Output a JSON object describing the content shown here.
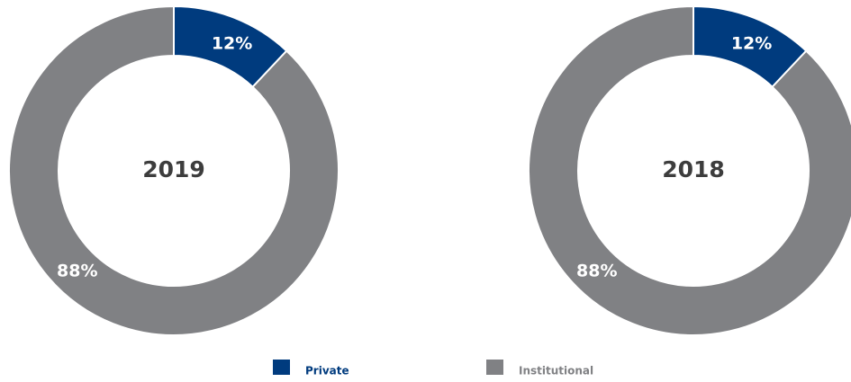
{
  "chart_data": [
    {
      "type": "donut",
      "title": "2019",
      "categories": [
        "Private",
        "Institutional"
      ],
      "values": [
        12,
        88
      ],
      "value_labels": [
        "12%",
        "88%"
      ],
      "colors": [
        "#003b7e",
        "#808184"
      ]
    },
    {
      "type": "donut",
      "title": "2018",
      "categories": [
        "Private",
        "Institutional"
      ],
      "values": [
        12,
        88
      ],
      "value_labels": [
        "12%",
        "88%"
      ],
      "colors": [
        "#003b7e",
        "#808184"
      ]
    }
  ]
}
